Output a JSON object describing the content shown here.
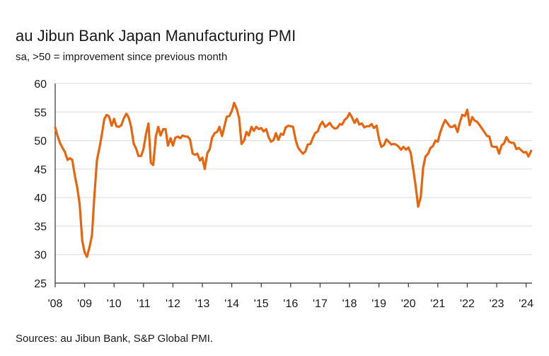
{
  "chart_data": {
    "type": "line",
    "title": "au Jibun Bank Japan Manufacturing PMI",
    "subtitle": "sa, >50 = improvement since previous month",
    "source": "Sources: au Jibun Bank, S&P Global PMI.",
    "xlabel": "",
    "ylabel": "",
    "ylim": [
      25,
      60
    ],
    "yticks": [
      25,
      30,
      35,
      40,
      45,
      50,
      55,
      60
    ],
    "xlim": [
      2008.0,
      2024.2
    ],
    "xticks": [
      {
        "label": "'08",
        "value": 2008
      },
      {
        "label": "'09",
        "value": 2009
      },
      {
        "label": "'10",
        "value": 2010
      },
      {
        "label": "'11",
        "value": 2011
      },
      {
        "label": "'12",
        "value": 2012
      },
      {
        "label": "'13",
        "value": 2013
      },
      {
        "label": "'14",
        "value": 2014
      },
      {
        "label": "'15",
        "value": 2015
      },
      {
        "label": "'16",
        "value": 2016
      },
      {
        "label": "'17",
        "value": 2017
      },
      {
        "label": "'18",
        "value": 2018
      },
      {
        "label": "'19",
        "value": 2019
      },
      {
        "label": "'20",
        "value": 2020
      },
      {
        "label": "'21",
        "value": 2021
      },
      {
        "label": "'22",
        "value": 2022
      },
      {
        "label": "'23",
        "value": 2023
      },
      {
        "label": "'24",
        "value": 2024
      }
    ],
    "grid": true,
    "series": [
      {
        "name": "au Jibun Bank Japan Manufacturing PMI",
        "color": "#e8650f",
        "points": [
          [
            2008.0,
            52.3
          ],
          [
            2008.08,
            50.8
          ],
          [
            2008.17,
            49.5
          ],
          [
            2008.25,
            48.7
          ],
          [
            2008.33,
            48.0
          ],
          [
            2008.42,
            46.6
          ],
          [
            2008.5,
            46.9
          ],
          [
            2008.58,
            46.6
          ],
          [
            2008.67,
            43.8
          ],
          [
            2008.75,
            41.7
          ],
          [
            2008.83,
            38.9
          ],
          [
            2008.92,
            32.4
          ],
          [
            2009.0,
            30.4
          ],
          [
            2009.08,
            29.6
          ],
          [
            2009.17,
            31.4
          ],
          [
            2009.25,
            33.4
          ],
          [
            2009.33,
            40.2
          ],
          [
            2009.42,
            46.6
          ],
          [
            2009.5,
            48.6
          ],
          [
            2009.58,
            50.9
          ],
          [
            2009.67,
            53.8
          ],
          [
            2009.75,
            54.5
          ],
          [
            2009.83,
            54.2
          ],
          [
            2009.92,
            52.6
          ],
          [
            2010.0,
            53.8
          ],
          [
            2010.08,
            52.5
          ],
          [
            2010.17,
            52.4
          ],
          [
            2010.25,
            52.7
          ],
          [
            2010.33,
            53.9
          ],
          [
            2010.42,
            54.7
          ],
          [
            2010.5,
            54.0
          ],
          [
            2010.58,
            52.4
          ],
          [
            2010.67,
            49.4
          ],
          [
            2010.75,
            48.6
          ],
          [
            2010.83,
            47.3
          ],
          [
            2010.92,
            47.3
          ],
          [
            2011.0,
            48.5
          ],
          [
            2011.08,
            51.0
          ],
          [
            2011.17,
            53.0
          ],
          [
            2011.25,
            46.1
          ],
          [
            2011.33,
            45.7
          ],
          [
            2011.42,
            50.7
          ],
          [
            2011.5,
            52.4
          ],
          [
            2011.58,
            50.9
          ],
          [
            2011.67,
            52.0
          ],
          [
            2011.75,
            52.0
          ],
          [
            2011.83,
            49.1
          ],
          [
            2011.92,
            50.4
          ],
          [
            2012.0,
            49.1
          ],
          [
            2012.08,
            50.5
          ],
          [
            2012.17,
            50.7
          ],
          [
            2012.25,
            50.4
          ],
          [
            2012.33,
            50.9
          ],
          [
            2012.42,
            50.7
          ],
          [
            2012.5,
            50.7
          ],
          [
            2012.58,
            50.2
          ],
          [
            2012.67,
            47.7
          ],
          [
            2012.75,
            47.5
          ],
          [
            2012.83,
            47.7
          ],
          [
            2012.92,
            46.5
          ],
          [
            2013.0,
            47.0
          ],
          [
            2013.08,
            45.0
          ],
          [
            2013.17,
            47.8
          ],
          [
            2013.25,
            48.5
          ],
          [
            2013.33,
            50.5
          ],
          [
            2013.42,
            51.3
          ],
          [
            2013.5,
            51.5
          ],
          [
            2013.58,
            52.4
          ],
          [
            2013.67,
            50.8
          ],
          [
            2013.75,
            52.5
          ],
          [
            2013.83,
            54.2
          ],
          [
            2013.92,
            54.3
          ],
          [
            2014.0,
            55.2
          ],
          [
            2014.08,
            56.6
          ],
          [
            2014.17,
            55.5
          ],
          [
            2014.25,
            53.9
          ],
          [
            2014.33,
            49.4
          ],
          [
            2014.42,
            50.0
          ],
          [
            2014.5,
            51.5
          ],
          [
            2014.58,
            50.9
          ],
          [
            2014.67,
            52.4
          ],
          [
            2014.75,
            51.7
          ],
          [
            2014.83,
            52.4
          ],
          [
            2014.92,
            52.0
          ],
          [
            2015.0,
            52.2
          ],
          [
            2015.08,
            51.6
          ],
          [
            2015.17,
            52.0
          ],
          [
            2015.25,
            50.6
          ],
          [
            2015.33,
            49.8
          ],
          [
            2015.42,
            50.1
          ],
          [
            2015.5,
            51.3
          ],
          [
            2015.58,
            50.1
          ],
          [
            2015.67,
            51.2
          ],
          [
            2015.75,
            51.0
          ],
          [
            2015.83,
            52.3
          ],
          [
            2015.92,
            52.6
          ],
          [
            2016.0,
            52.5
          ],
          [
            2016.08,
            52.4
          ],
          [
            2016.17,
            50.1
          ],
          [
            2016.25,
            48.8
          ],
          [
            2016.33,
            48.2
          ],
          [
            2016.42,
            47.7
          ],
          [
            2016.5,
            48.1
          ],
          [
            2016.58,
            49.3
          ],
          [
            2016.67,
            49.4
          ],
          [
            2016.75,
            50.4
          ],
          [
            2016.83,
            51.3
          ],
          [
            2016.92,
            51.6
          ],
          [
            2017.0,
            52.7
          ],
          [
            2017.08,
            53.3
          ],
          [
            2017.17,
            52.4
          ],
          [
            2017.25,
            52.7
          ],
          [
            2017.33,
            53.1
          ],
          [
            2017.42,
            52.4
          ],
          [
            2017.5,
            52.1
          ],
          [
            2017.58,
            52.2
          ],
          [
            2017.67,
            52.9
          ],
          [
            2017.75,
            52.8
          ],
          [
            2017.83,
            53.6
          ],
          [
            2017.92,
            54.0
          ],
          [
            2018.0,
            54.8
          ],
          [
            2018.08,
            54.1
          ],
          [
            2018.17,
            53.1
          ],
          [
            2018.25,
            53.8
          ],
          [
            2018.33,
            52.8
          ],
          [
            2018.42,
            53.0
          ],
          [
            2018.5,
            52.3
          ],
          [
            2018.58,
            52.5
          ],
          [
            2018.67,
            52.5
          ],
          [
            2018.75,
            52.9
          ],
          [
            2018.83,
            52.2
          ],
          [
            2018.92,
            52.6
          ],
          [
            2019.0,
            50.3
          ],
          [
            2019.08,
            48.9
          ],
          [
            2019.17,
            49.2
          ],
          [
            2019.25,
            50.2
          ],
          [
            2019.33,
            49.8
          ],
          [
            2019.42,
            49.3
          ],
          [
            2019.5,
            49.4
          ],
          [
            2019.58,
            49.3
          ],
          [
            2019.67,
            48.9
          ],
          [
            2019.75,
            48.4
          ],
          [
            2019.83,
            48.9
          ],
          [
            2019.92,
            48.4
          ],
          [
            2020.0,
            48.8
          ],
          [
            2020.08,
            47.8
          ],
          [
            2020.17,
            44.8
          ],
          [
            2020.25,
            41.9
          ],
          [
            2020.33,
            38.4
          ],
          [
            2020.42,
            40.1
          ],
          [
            2020.5,
            45.2
          ],
          [
            2020.58,
            47.2
          ],
          [
            2020.67,
            47.7
          ],
          [
            2020.75,
            48.7
          ],
          [
            2020.83,
            49.0
          ],
          [
            2020.92,
            50.0
          ],
          [
            2021.0,
            49.8
          ],
          [
            2021.08,
            51.4
          ],
          [
            2021.17,
            52.7
          ],
          [
            2021.25,
            53.6
          ],
          [
            2021.33,
            53.0
          ],
          [
            2021.42,
            52.4
          ],
          [
            2021.5,
            52.4
          ],
          [
            2021.58,
            52.7
          ],
          [
            2021.67,
            51.5
          ],
          [
            2021.75,
            53.2
          ],
          [
            2021.83,
            54.5
          ],
          [
            2021.92,
            54.3
          ],
          [
            2022.0,
            55.4
          ],
          [
            2022.08,
            52.7
          ],
          [
            2022.17,
            54.1
          ],
          [
            2022.25,
            53.5
          ],
          [
            2022.33,
            53.3
          ],
          [
            2022.42,
            52.7
          ],
          [
            2022.5,
            52.1
          ],
          [
            2022.58,
            51.5
          ],
          [
            2022.67,
            50.8
          ],
          [
            2022.75,
            50.7
          ],
          [
            2022.83,
            49.0
          ],
          [
            2022.92,
            48.9
          ],
          [
            2023.0,
            48.9
          ],
          [
            2023.08,
            47.7
          ],
          [
            2023.17,
            49.2
          ],
          [
            2023.25,
            49.5
          ],
          [
            2023.33,
            50.6
          ],
          [
            2023.42,
            49.8
          ],
          [
            2023.5,
            49.6
          ],
          [
            2023.58,
            49.6
          ],
          [
            2023.67,
            48.5
          ],
          [
            2023.75,
            48.7
          ],
          [
            2023.83,
            48.3
          ],
          [
            2023.92,
            47.9
          ],
          [
            2024.0,
            48.0
          ],
          [
            2024.08,
            47.2
          ],
          [
            2024.17,
            48.2
          ]
        ]
      }
    ]
  }
}
